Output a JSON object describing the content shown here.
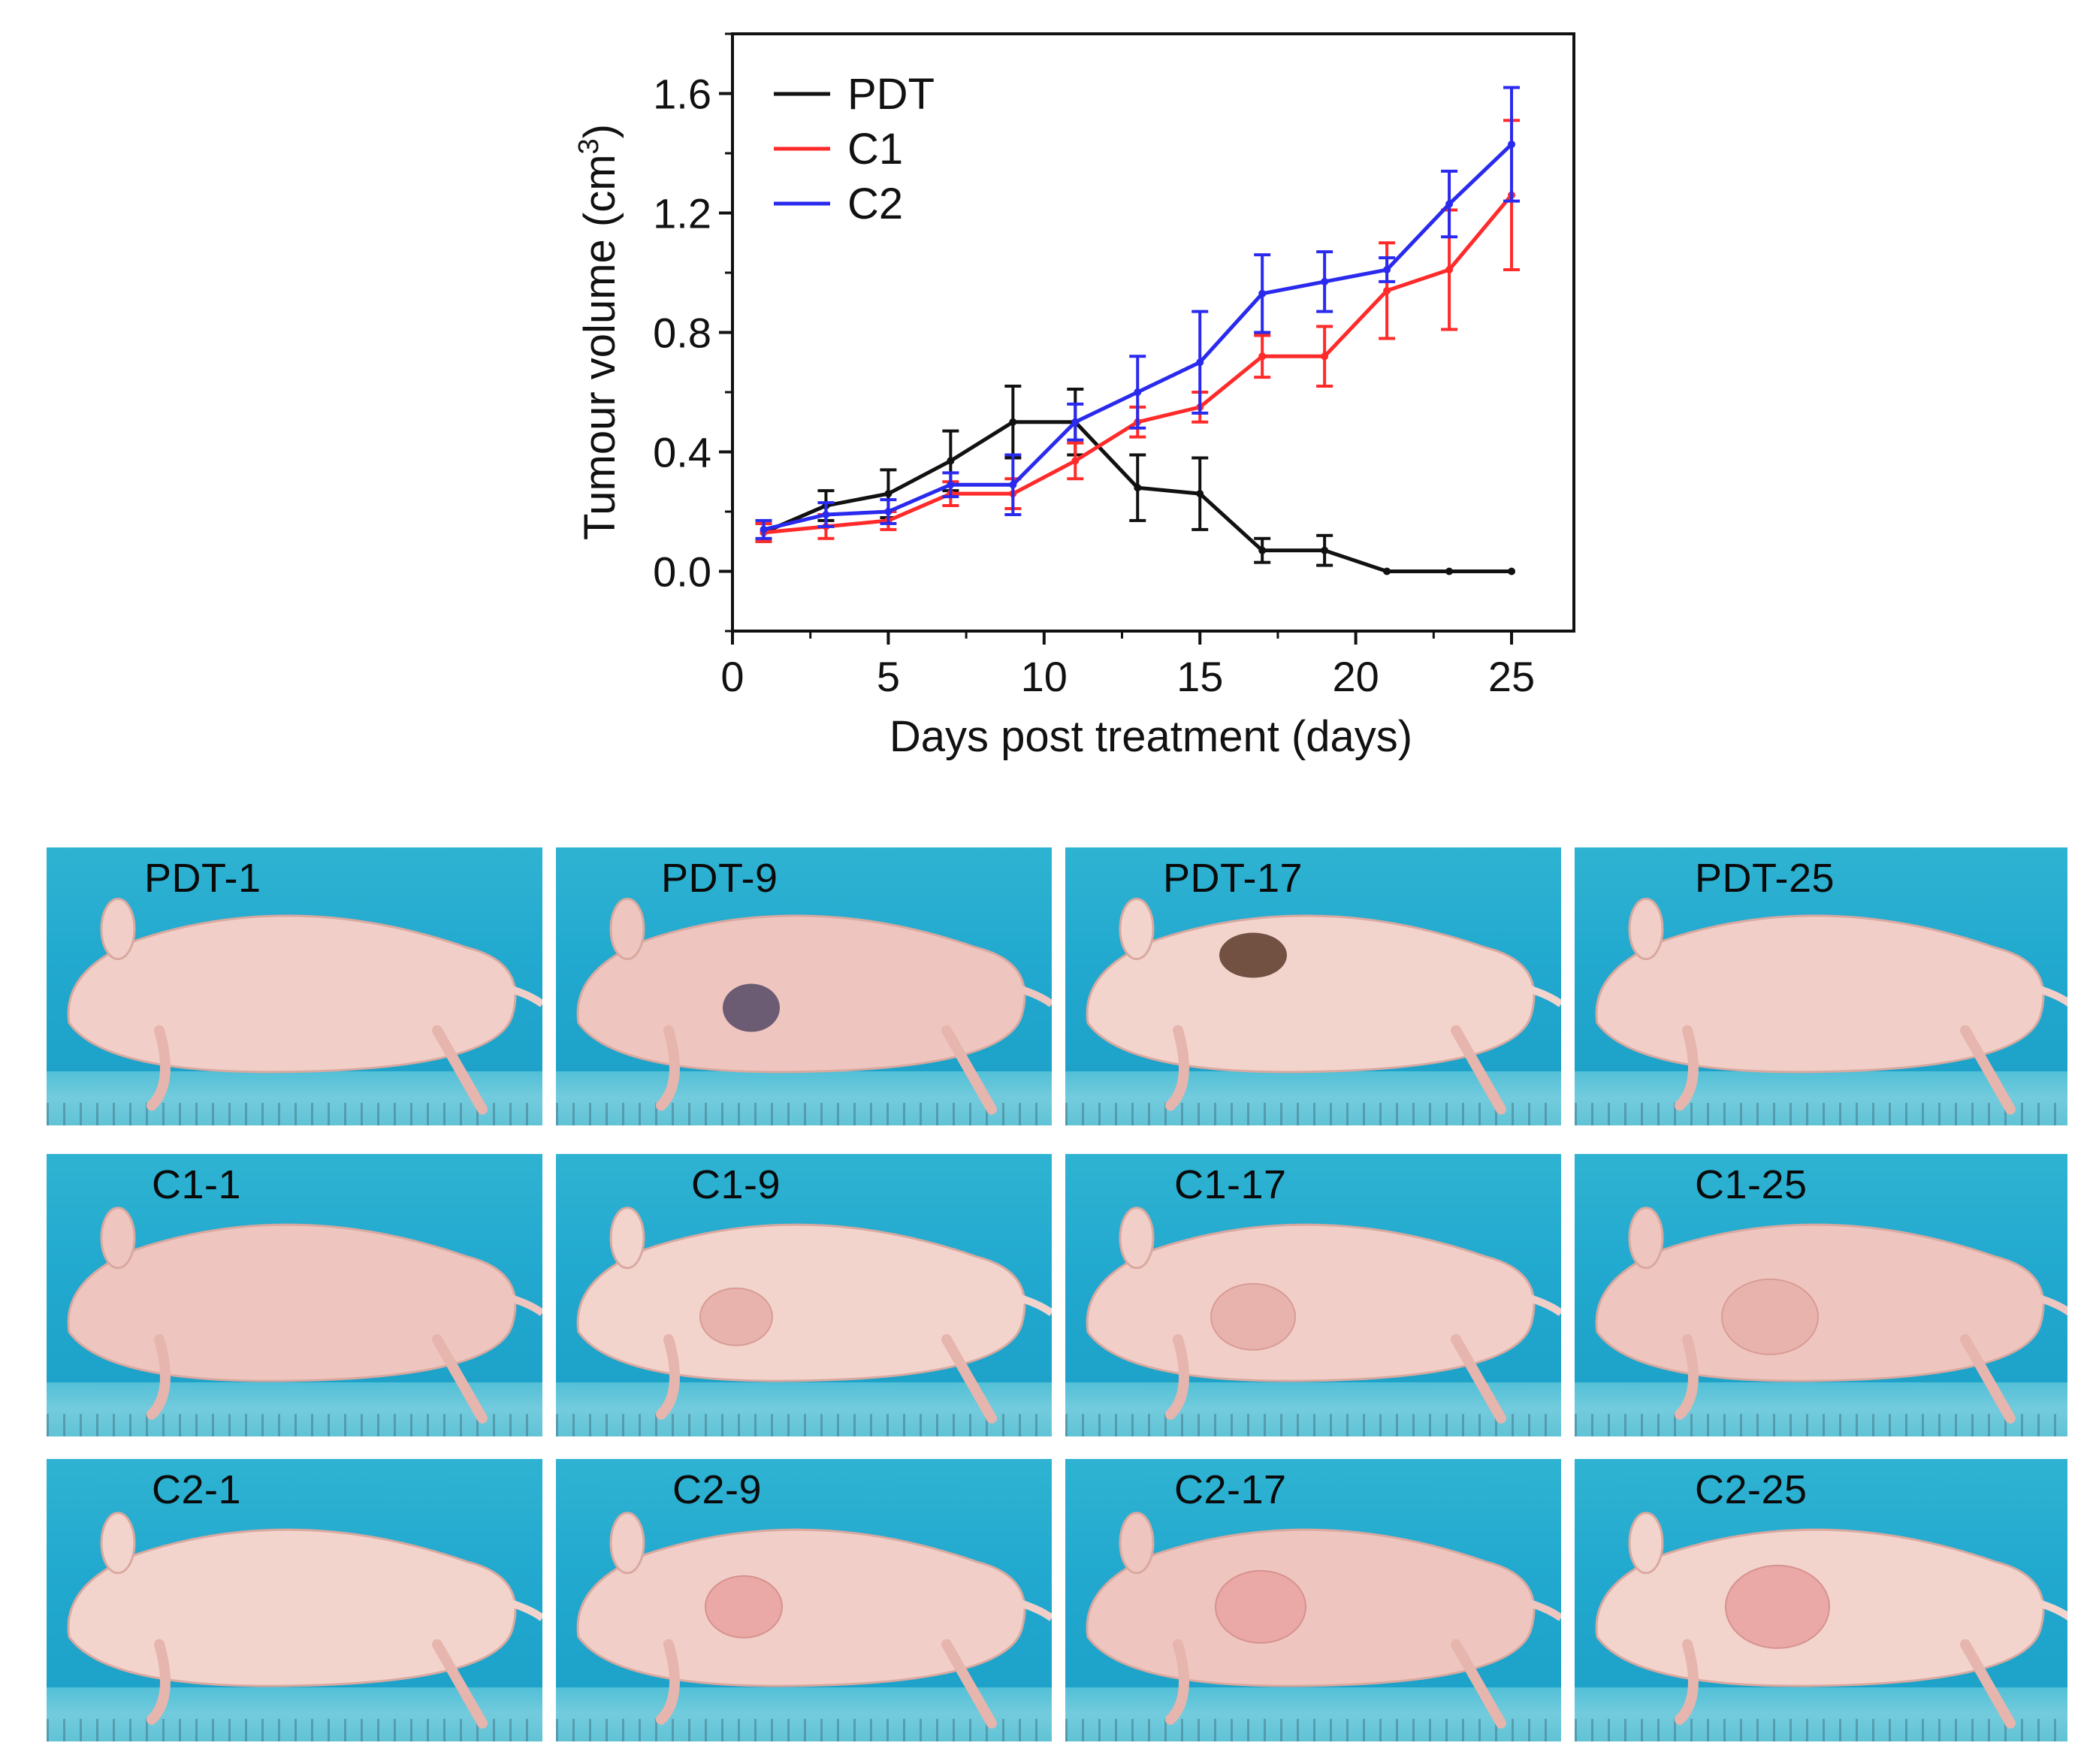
{
  "chart_data": {
    "type": "line",
    "ylabel": "Tumour volume (cm",
    "ylabel_sup": "3",
    "ylabel_close": ")",
    "xlabel": "Days post treatment (days)",
    "xlim": [
      0,
      27
    ],
    "ylim": [
      -0.2,
      1.8
    ],
    "xticks": [
      0,
      5,
      10,
      15,
      20,
      25
    ],
    "yticks": [
      0.0,
      0.4,
      0.8,
      1.2,
      1.6
    ],
    "ytick_labels": [
      "0.0",
      "0.4",
      "0.8",
      "1.2",
      "1.6"
    ],
    "xtick_labels": [
      "0",
      "5",
      "10",
      "15",
      "20",
      "25"
    ],
    "legend_position": "top-left",
    "x": [
      1,
      3,
      5,
      7,
      9,
      11,
      13,
      15,
      17,
      19,
      21,
      23,
      25
    ],
    "series": [
      {
        "name": "PDT",
        "color": "#111111",
        "values": [
          0.13,
          0.22,
          0.26,
          0.37,
          0.5,
          0.5,
          0.28,
          0.26,
          0.07,
          0.07,
          0.0,
          0.0,
          0.0
        ],
        "errors": [
          0.03,
          0.05,
          0.08,
          0.1,
          0.12,
          0.11,
          0.11,
          0.12,
          0.04,
          0.05,
          0.0,
          0.0,
          0.0
        ]
      },
      {
        "name": "C1",
        "color": "#ff2a2a",
        "values": [
          0.13,
          0.15,
          0.17,
          0.26,
          0.26,
          0.37,
          0.5,
          0.55,
          0.72,
          0.72,
          0.94,
          1.01,
          1.26
        ],
        "errors": [
          0.03,
          0.04,
          0.03,
          0.04,
          0.05,
          0.06,
          0.05,
          0.05,
          0.07,
          0.1,
          0.16,
          0.2,
          0.25
        ]
      },
      {
        "name": "C2",
        "color": "#2a2aee",
        "values": [
          0.14,
          0.19,
          0.2,
          0.29,
          0.29,
          0.5,
          0.6,
          0.7,
          0.93,
          0.97,
          1.01,
          1.23,
          1.43
        ],
        "errors": [
          0.03,
          0.04,
          0.04,
          0.04,
          0.1,
          0.06,
          0.12,
          0.17,
          0.13,
          0.1,
          0.04,
          0.11,
          0.19
        ]
      }
    ]
  },
  "photos": {
    "rows": [
      [
        "PDT-1",
        "PDT-9",
        "PDT-17",
        "PDT-25"
      ],
      [
        "C1-1",
        "C1-9",
        "C1-17",
        "C1-25"
      ],
      [
        "C2-1",
        "C2-9",
        "C2-17",
        "C2-25"
      ]
    ]
  }
}
